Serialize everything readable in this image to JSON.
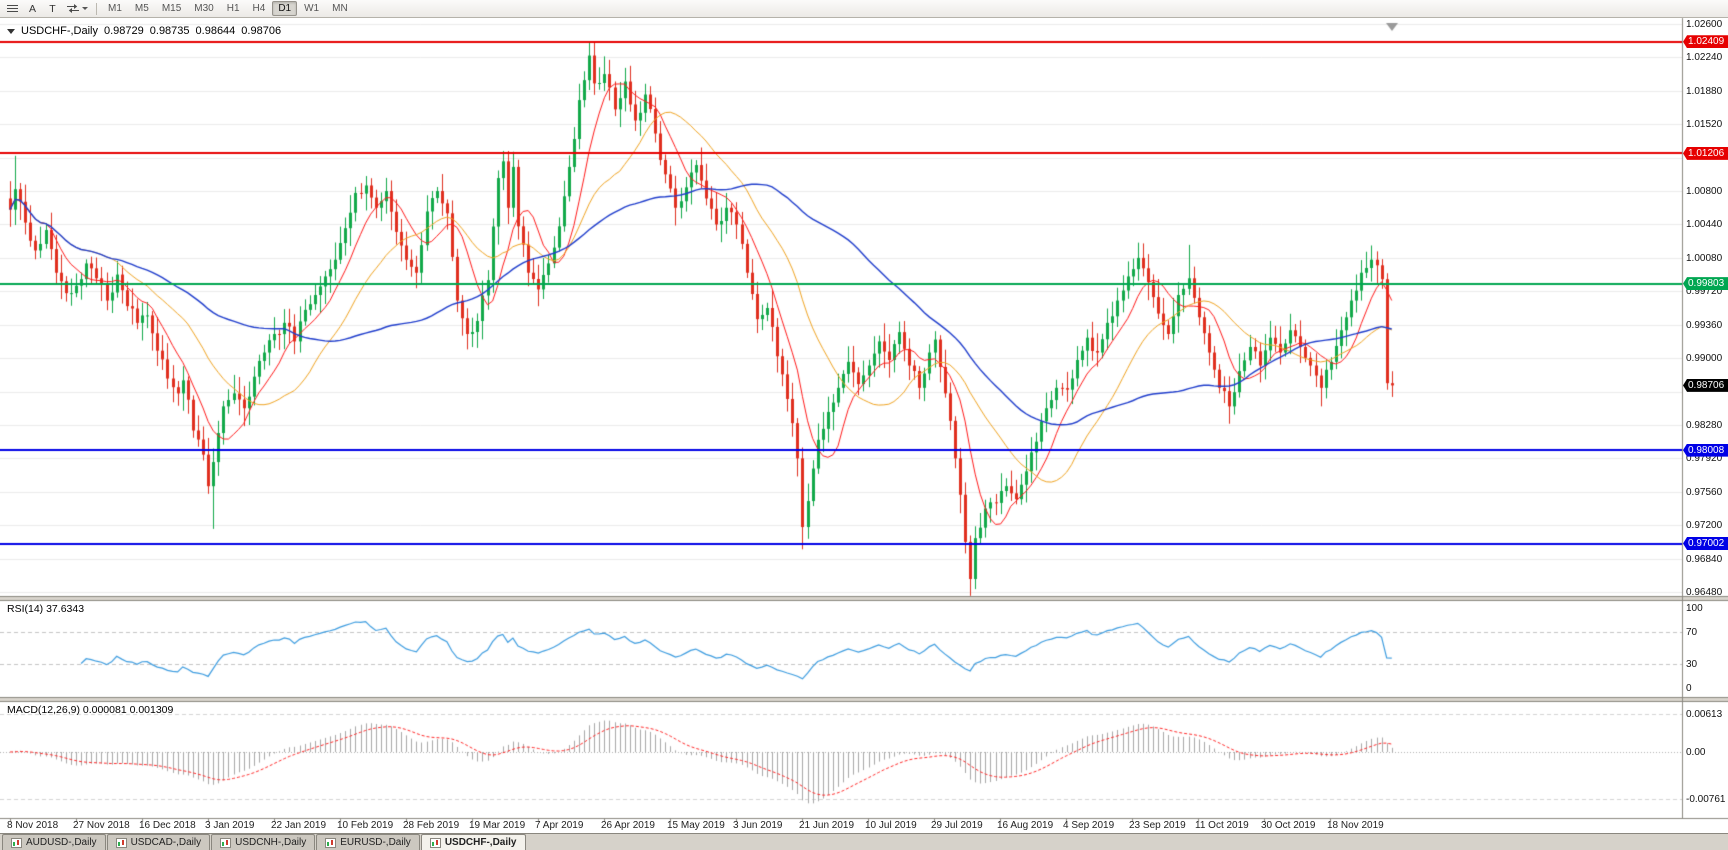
{
  "toolbar": {
    "icons": [
      {
        "name": "menu-icon"
      },
      {
        "name": "pointer-a-button",
        "label": "A"
      },
      {
        "name": "text-tool-button",
        "label": "T"
      },
      {
        "name": "cycle-arrows-button"
      }
    ],
    "timeframes": [
      {
        "label": "M1"
      },
      {
        "label": "M5"
      },
      {
        "label": "M15"
      },
      {
        "label": "M30"
      },
      {
        "label": "H1"
      },
      {
        "label": "H4"
      },
      {
        "label": "D1"
      },
      {
        "label": "W1"
      },
      {
        "label": "MN"
      }
    ],
    "active_timeframe": "D1"
  },
  "chart": {
    "header": {
      "symbol": "USDCHF-,Daily",
      "open": "0.98729",
      "high": "0.98735",
      "low": "0.98644",
      "close": "0.98706"
    },
    "y_axis": {
      "labels": [
        {
          "text": "1.02600",
          "price": 1.026
        },
        {
          "text": "1.02240",
          "price": 1.0224
        },
        {
          "text": "1.01880",
          "price": 1.0188
        },
        {
          "text": "1.01520",
          "price": 1.0152
        },
        {
          "text": "1.00800",
          "price": 1.008
        },
        {
          "text": "1.00440",
          "price": 1.0044
        },
        {
          "text": "1.00080",
          "price": 1.0008
        },
        {
          "text": "0.99720",
          "price": 0.9972
        },
        {
          "text": "0.99360",
          "price": 0.9936
        },
        {
          "text": "0.99000",
          "price": 0.99
        },
        {
          "text": "0.98280",
          "price": 0.9828
        },
        {
          "text": "0.97920",
          "price": 0.9792
        },
        {
          "text": "0.97560",
          "price": 0.9756
        },
        {
          "text": "0.97200",
          "price": 0.972
        },
        {
          "text": "0.96840",
          "price": 0.9684
        },
        {
          "text": "0.96480",
          "price": 0.9648
        }
      ]
    },
    "x_axis": {
      "labels": [
        {
          "text": "8 Nov 2018",
          "k": 0
        },
        {
          "text": "27 Nov 2018",
          "k": 1
        },
        {
          "text": "16 Dec 2018",
          "k": 2
        },
        {
          "text": "3 Jan 2019",
          "k": 3
        },
        {
          "text": "22 Jan 2019",
          "k": 4
        },
        {
          "text": "10 Feb 2019",
          "k": 5
        },
        {
          "text": "28 Feb 2019",
          "k": 6
        },
        {
          "text": "19 Mar 2019",
          "k": 7
        },
        {
          "text": "7 Apr 2019",
          "k": 8
        },
        {
          "text": "26 Apr 2019",
          "k": 9
        },
        {
          "text": "15 May 2019",
          "k": 10
        },
        {
          "text": "3 Jun 2019",
          "k": 11
        },
        {
          "text": "21 Jun 2019",
          "k": 12
        },
        {
          "text": "10 Jul 2019",
          "k": 13
        },
        {
          "text": "29 Jul 2019",
          "k": 14
        },
        {
          "text": "16 Aug 2019",
          "k": 15
        },
        {
          "text": "4 Sep 2019",
          "k": 16
        },
        {
          "text": "23 Sep 2019",
          "k": 17
        },
        {
          "text": "11 Oct 2019",
          "k": 18
        },
        {
          "text": "30 Oct 2019",
          "k": 19
        },
        {
          "text": "18 Nov 2019",
          "k": 20
        }
      ]
    },
    "hlines": [
      {
        "price": 1.02409,
        "label": "1.02409",
        "color": "#e60000",
        "type": "resistance"
      },
      {
        "price": 1.01206,
        "label": "1.01206",
        "color": "#e60000",
        "type": "resistance"
      },
      {
        "price": 0.99803,
        "label": "0.99803",
        "color": "#00a651",
        "type": "level"
      },
      {
        "price": 0.98008,
        "label": "0.98008",
        "color": "#0000e6",
        "type": "support"
      },
      {
        "price": 0.97002,
        "label": "0.97002",
        "color": "#0000e6",
        "type": "support"
      }
    ],
    "current_price": {
      "label": "0.98706",
      "price": 0.98706,
      "color": "#000000"
    }
  },
  "chart_data": {
    "type": "candlestick",
    "symbol": "USDCHF",
    "timeframe": "Daily",
    "title": "USDCHF-,Daily",
    "ylim": [
      0.9648,
      1.026
    ],
    "grid_step": 0.0036,
    "num_candles": 273,
    "bull_color": "#12a94a",
    "bear_color": "#e02f1f",
    "close_path": [
      [
        0,
        1.006
      ],
      [
        1,
        1.0082
      ],
      [
        3,
        1.0046
      ],
      [
        5,
        1.0016
      ],
      [
        7,
        1.0038
      ],
      [
        9,
        0.9992
      ],
      [
        11,
        0.997
      ],
      [
        13,
        0.9978
      ],
      [
        15,
        1.0002
      ],
      [
        17,
        0.9986
      ],
      [
        19,
        0.9962
      ],
      [
        21,
        0.999
      ],
      [
        23,
        0.9956
      ],
      [
        25,
        0.9938
      ],
      [
        27,
        0.9946
      ],
      [
        29,
        0.9908
      ],
      [
        31,
        0.9878
      ],
      [
        33,
        0.9862
      ],
      [
        34,
        0.9876
      ],
      [
        36,
        0.9822
      ],
      [
        38,
        0.9796
      ],
      [
        39,
        0.9762
      ],
      [
        40,
        0.9788
      ],
      [
        42,
        0.9848
      ],
      [
        44,
        0.9862
      ],
      [
        46,
        0.9846
      ],
      [
        48,
        0.988
      ],
      [
        50,
        0.9906
      ],
      [
        52,
        0.9926
      ],
      [
        54,
        0.9938
      ],
      [
        56,
        0.9918
      ],
      [
        58,
        0.9952
      ],
      [
        60,
        0.9968
      ],
      [
        62,
        0.9988
      ],
      [
        64,
        1.0006
      ],
      [
        66,
        1.004
      ],
      [
        68,
        1.0078
      ],
      [
        70,
        1.0086
      ],
      [
        72,
        1.0062
      ],
      [
        74,
        1.008
      ],
      [
        76,
        1.0036
      ],
      [
        78,
        1.0006
      ],
      [
        80,
        0.9992
      ],
      [
        82,
        1.0058
      ],
      [
        84,
        1.008
      ],
      [
        86,
        1.0056
      ],
      [
        88,
        0.9962
      ],
      [
        90,
        0.9926
      ],
      [
        92,
        0.994
      ],
      [
        94,
        0.9984
      ],
      [
        96,
        1.0094
      ],
      [
        97,
        1.0112
      ],
      [
        98,
        1.0062
      ],
      [
        99,
        1.0106
      ],
      [
        100,
        1.0042
      ],
      [
        102,
        0.9992
      ],
      [
        104,
        0.9974
      ],
      [
        106,
        1.0002
      ],
      [
        108,
        1.0042
      ],
      [
        110,
        1.0106
      ],
      [
        112,
        1.0178
      ],
      [
        114,
        1.0226
      ],
      [
        115,
        1.0196
      ],
      [
        117,
        1.0206
      ],
      [
        119,
        1.0168
      ],
      [
        121,
        1.0198
      ],
      [
        123,
        1.0156
      ],
      [
        125,
        1.0184
      ],
      [
        127,
        1.0142
      ],
      [
        129,
        1.0098
      ],
      [
        131,
        1.0062
      ],
      [
        133,
        1.0084
      ],
      [
        135,
        1.0108
      ],
      [
        137,
        1.0072
      ],
      [
        139,
        1.0044
      ],
      [
        141,
        1.0062
      ],
      [
        143,
        1.0044
      ],
      [
        145,
        0.9992
      ],
      [
        147,
        0.9942
      ],
      [
        149,
        0.9954
      ],
      [
        151,
        0.9902
      ],
      [
        153,
        0.9856
      ],
      [
        155,
        0.9792
      ],
      [
        156,
        0.9718
      ],
      [
        157,
        0.9746
      ],
      [
        159,
        0.9812
      ],
      [
        161,
        0.9842
      ],
      [
        163,
        0.9868
      ],
      [
        165,
        0.9896
      ],
      [
        167,
        0.9872
      ],
      [
        169,
        0.9892
      ],
      [
        171,
        0.9918
      ],
      [
        173,
        0.9898
      ],
      [
        175,
        0.9928
      ],
      [
        177,
        0.9892
      ],
      [
        179,
        0.9868
      ],
      [
        181,
        0.9906
      ],
      [
        182,
        0.992
      ],
      [
        184,
        0.9862
      ],
      [
        186,
        0.9792
      ],
      [
        188,
        0.9702
      ],
      [
        189,
        0.9662
      ],
      [
        190,
        0.9706
      ],
      [
        192,
        0.9738
      ],
      [
        194,
        0.9744
      ],
      [
        196,
        0.9762
      ],
      [
        198,
        0.9748
      ],
      [
        200,
        0.9778
      ],
      [
        202,
        0.981
      ],
      [
        204,
        0.9846
      ],
      [
        206,
        0.9868
      ],
      [
        208,
        0.9866
      ],
      [
        210,
        0.9898
      ],
      [
        212,
        0.9922
      ],
      [
        214,
        0.9906
      ],
      [
        216,
        0.9938
      ],
      [
        218,
        0.9962
      ],
      [
        220,
        0.9988
      ],
      [
        222,
        1.0008
      ],
      [
        224,
        0.9982
      ],
      [
        226,
        0.9948
      ],
      [
        228,
        0.9926
      ],
      [
        230,
        0.9968
      ],
      [
        232,
        0.9986
      ],
      [
        234,
        0.9944
      ],
      [
        236,
        0.9906
      ],
      [
        238,
        0.9868
      ],
      [
        240,
        0.9848
      ],
      [
        242,
        0.9886
      ],
      [
        244,
        0.9912
      ],
      [
        246,
        0.9892
      ],
      [
        248,
        0.9922
      ],
      [
        250,
        0.9906
      ],
      [
        252,
        0.993
      ],
      [
        254,
        0.9912
      ],
      [
        256,
        0.9892
      ],
      [
        258,
        0.9868
      ],
      [
        260,
        0.9896
      ],
      [
        262,
        0.993
      ],
      [
        264,
        0.9962
      ],
      [
        266,
        0.9992
      ],
      [
        268,
        1.0006
      ],
      [
        269,
        1.0
      ],
      [
        270,
        0.9985
      ],
      [
        271,
        0.9873
      ],
      [
        272,
        0.98706
      ]
    ],
    "spikes": [
      {
        "i": 1,
        "high": 1.0118
      },
      {
        "i": 40,
        "low": 0.9716
      },
      {
        "i": 97,
        "high": 1.0119
      },
      {
        "i": 99,
        "high": 1.0116
      },
      {
        "i": 114,
        "high": 1.0237
      },
      {
        "i": 156,
        "low": 0.9694
      },
      {
        "i": 189,
        "low": 0.9649
      },
      {
        "i": 232,
        "high": 1.0022
      },
      {
        "i": 272,
        "low": 0.98644
      }
    ],
    "moving_averages": [
      {
        "period": 8,
        "color": "#ff1a1a"
      },
      {
        "period": 21,
        "color": "#f0a422"
      },
      {
        "period": 55,
        "color": "#1f3dcc"
      }
    ],
    "rsi": {
      "label": "RSI(14) 37.6343",
      "period": 14,
      "current": 37.6343,
      "color": "#3e9de0",
      "levels": [
        {
          "text": "100",
          "value": 100
        },
        {
          "text": "70",
          "value": 70
        },
        {
          "text": "30",
          "value": 30
        },
        {
          "text": "0",
          "value": 0
        }
      ],
      "dashed_levels": [
        70,
        30
      ]
    },
    "macd": {
      "label": "MACD(12,26,9) 0.000081 0.001309",
      "fast": 12,
      "slow": 26,
      "signal_period": 9,
      "values": [
        8.1e-05,
        0.001309
      ],
      "histogram_color": "#a8a8a8",
      "signal_color": "#ff2a2a",
      "scale_labels": [
        {
          "text": "0.00613",
          "value": 0.00613
        },
        {
          "text": "0.00",
          "value": 0
        },
        {
          "text": "-0.00761",
          "value": -0.00761
        }
      ]
    }
  },
  "tabs": [
    {
      "label": "AUDUSD-,Daily",
      "active": false
    },
    {
      "label": "USDCAD-,Daily",
      "active": false
    },
    {
      "label": "USDCNH-,Daily",
      "active": false
    },
    {
      "label": "EURUSD-,Daily",
      "active": false
    },
    {
      "label": "USDCHF-,Daily",
      "active": true
    }
  ]
}
